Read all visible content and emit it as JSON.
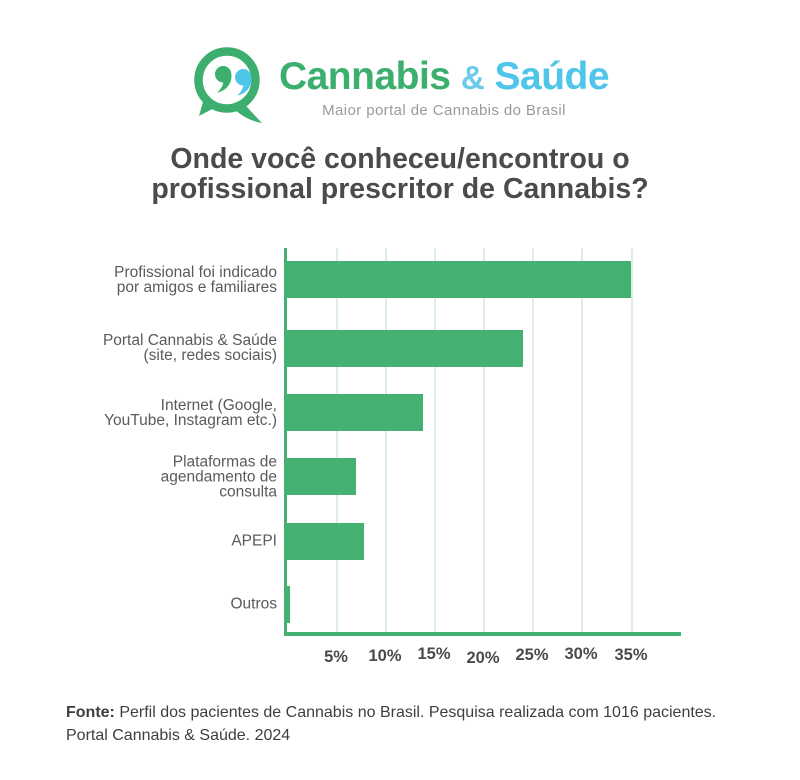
{
  "logo": {
    "brand_green": "Cannabis",
    "brand_amp": "&",
    "brand_blue": "Saúde",
    "tagline": "Maior portal de Cannabis do Brasil"
  },
  "title": "Onde você conheceu/encontrou o\nprofissional prescritor de Cannabis?",
  "chart_data": {
    "type": "bar",
    "orientation": "horizontal",
    "title": "Onde você conheceu/encontrou o profissional prescritor de Cannabis?",
    "categories": [
      "Profissional foi indicado\npor amigos e familiares",
      "Portal Cannabis & Saúde\n(site, redes sociais)",
      "Internet (Google,\nYouTube, Instagram etc.)",
      "Plataformas de\nagendamento de\nconsulta",
      "APEPI",
      "Outros"
    ],
    "values": [
      35,
      24,
      13.8,
      7,
      7.8,
      0.3
    ],
    "unit": "%",
    "xlabel": "",
    "ylabel": "",
    "xlim": [
      0,
      40
    ],
    "ticks": [
      5,
      10,
      15,
      20,
      25,
      30,
      35
    ],
    "tick_labels": [
      "5%",
      "10%",
      "15%",
      "20%",
      "25%",
      "30%",
      "35%"
    ],
    "grid": true,
    "bar_color": "#44B072",
    "grid_color": "#DCEDE3"
  },
  "footer": {
    "label": "Fonte:",
    "text": "Perfil dos pacientes de Cannabis no Brasil. Pesquisa realizada com 1016 pacientes.\nPortal Cannabis & Saúde. 2024"
  },
  "theme": {
    "green": "#44B072",
    "logo-green": "#3CAE6E",
    "blue": "#4EC5E9",
    "amp-blue": "#6CCAEB",
    "grid": "#DCEDE3",
    "title-color": "#4B4B4D",
    "label-color": "#595A5C",
    "tick-color": "#4A4A4C",
    "footer-color": "#3E3E40",
    "tagline-color": "#9A9A9A"
  }
}
